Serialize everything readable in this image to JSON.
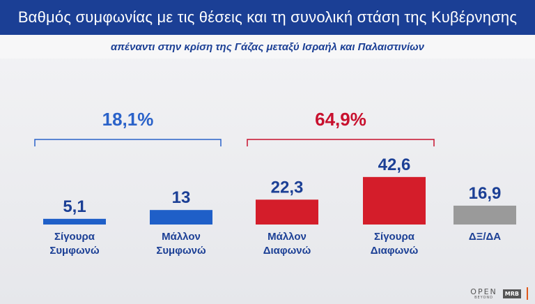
{
  "header": {
    "title": "Βαθμός συμφωνίας με τις θέσεις και τη συνολική στάση της Κυβέρνησης",
    "subtitle": "απέναντι στην κρίση της Γάζας μεταξύ Ισραήλ και Παλαιστινίων"
  },
  "chart_data": {
    "type": "bar",
    "title": "Βαθμός συμφωνίας με τις θέσεις και τη συνολική στάση της Κυβέρνησης",
    "subtitle": "απέναντι στην κρίση της Γάζας μεταξύ Ισραήλ και Παλαιστινίων",
    "categories": [
      [
        "Σίγουρα",
        "Συμφωνώ"
      ],
      [
        "Μάλλον",
        "Συμφωνώ"
      ],
      [
        "Μάλλον",
        "Διαφωνώ"
      ],
      [
        "Σίγουρα",
        "Διαφωνώ"
      ],
      [
        "ΔΞ/ΔΑ"
      ]
    ],
    "values": [
      5.1,
      13,
      22.3,
      42.6,
      16.9
    ],
    "value_labels": [
      "5,1",
      "13",
      "22,3",
      "42,6",
      "16,9"
    ],
    "colors": [
      "#1f5fc8",
      "#1f5fc8",
      "#d41d2a",
      "#d41d2a",
      "#9a9a9a"
    ],
    "label_colors": [
      "#1b3f95",
      "#1b3f95",
      "#1b3f95",
      "#1b3f95",
      "#1b3f95"
    ],
    "groups": [
      {
        "label": "18,1%",
        "value": 18.1,
        "from": 0,
        "to": 1,
        "color": "#2a62c9"
      },
      {
        "label": "64,9%",
        "value": 64.9,
        "from": 2,
        "to": 3,
        "color": "#c8102e"
      }
    ],
    "xlabel": "",
    "ylabel": "",
    "ylim": [
      0,
      60
    ],
    "grid": false,
    "legend": "none"
  },
  "footer": {
    "logo_open": "OPEN",
    "logo_open_sub": "BEYOND",
    "logo_mrb": "MRB"
  }
}
